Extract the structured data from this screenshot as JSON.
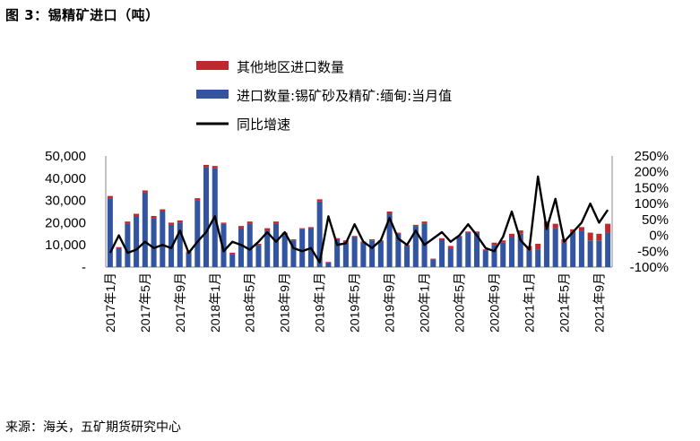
{
  "figure_title": "图 3：锡精矿进口（吨）",
  "source": "来源：海关，五矿期货研究中心",
  "colors": {
    "other_regions": "#C0282D",
    "myanmar": "#3355A1",
    "yoy_line": "#000000"
  },
  "chart_data": {
    "type": "bar",
    "stacked": true,
    "categories": [
      "2017-01",
      "2017-02",
      "2017-03",
      "2017-04",
      "2017-05",
      "2017-06",
      "2017-07",
      "2017-08",
      "2017-09",
      "2017-10",
      "2017-11",
      "2017-12",
      "2018-01",
      "2018-02",
      "2018-03",
      "2018-04",
      "2018-05",
      "2018-06",
      "2018-07",
      "2018-08",
      "2018-09",
      "2018-10",
      "2018-11",
      "2018-12",
      "2019-01",
      "2019-02",
      "2019-03",
      "2019-04",
      "2019-05",
      "2019-06",
      "2019-07",
      "2019-08",
      "2019-09",
      "2019-10",
      "2019-11",
      "2019-12",
      "2020-01",
      "2020-02",
      "2020-03",
      "2020-04",
      "2020-05",
      "2020-06",
      "2020-07",
      "2020-08",
      "2020-09",
      "2020-10",
      "2020-11",
      "2020-12",
      "2021-01",
      "2021-02",
      "2021-03",
      "2021-04",
      "2021-05",
      "2021-06",
      "2021-07",
      "2021-08",
      "2021-09",
      "2021-10"
    ],
    "x_tick_labels": [
      "2017年1月",
      "2017年5月",
      "2017年9月",
      "2018年1月",
      "2018年5月",
      "2018年9月",
      "2019年1月",
      "2019年5月",
      "2019年9月",
      "2020年1月",
      "2020年5月",
      "2020年9月",
      "2021年1月",
      "2021年5月",
      "2021年9月"
    ],
    "x_tick_every": 4,
    "series": [
      {
        "name": "进口数量:锡矿砂及精矿:缅甸:当月值",
        "axis": "left",
        "values": [
          31000,
          8500,
          19500,
          23000,
          33500,
          22000,
          25000,
          19000,
          20000,
          6500,
          30000,
          45000,
          44500,
          19500,
          6000,
          17500,
          19500,
          10000,
          16500,
          19500,
          14500,
          12000,
          17000,
          17500,
          29500,
          2000,
          12500,
          11000,
          13500,
          11000,
          12000,
          11500,
          24000,
          15000,
          9500,
          18500,
          19500,
          3500,
          12500,
          8500,
          13500,
          15500,
          15500,
          7500,
          10000,
          11000,
          13500,
          15000,
          7500,
          8000,
          17500,
          17500,
          11000,
          15500,
          16500,
          12000,
          12000,
          15500
        ]
      },
      {
        "name": "其他地区进口数量",
        "axis": "left",
        "values": [
          1000,
          500,
          1000,
          1000,
          1000,
          1000,
          1000,
          1000,
          1000,
          500,
          1000,
          1000,
          1000,
          500,
          500,
          1000,
          1000,
          500,
          1000,
          1000,
          1000,
          500,
          500,
          500,
          1000,
          300,
          500,
          1000,
          500,
          500,
          500,
          500,
          1000,
          500,
          500,
          500,
          1000,
          300,
          500,
          1000,
          500,
          500,
          500,
          500,
          1000,
          1000,
          1500,
          1500,
          2000,
          2500,
          3000,
          2000,
          1500,
          1500,
          1500,
          3500,
          3000,
          4000
        ]
      },
      {
        "name": "同比增速",
        "axis": "right",
        "type": "line",
        "values": [
          -55,
          0,
          -55,
          -45,
          -20,
          -40,
          -30,
          -40,
          15,
          -55,
          -20,
          10,
          60,
          -50,
          -20,
          -30,
          -45,
          -20,
          10,
          -20,
          10,
          -40,
          -50,
          -40,
          -85,
          60,
          -30,
          -25,
          35,
          -20,
          -40,
          -15,
          55,
          -10,
          -30,
          15,
          -30,
          -10,
          10,
          -20,
          0,
          35,
          0,
          -40,
          -50,
          -5,
          75,
          -15,
          -45,
          185,
          20,
          115,
          -20,
          10,
          40,
          100,
          40,
          80
        ]
      }
    ],
    "y_left": {
      "ticks": [
        "-",
        "10,000",
        "20,000",
        "30,000",
        "40,000",
        "50,000"
      ],
      "range": [
        0,
        50000
      ]
    },
    "y_right": {
      "ticks": [
        "-100%",
        "-50%",
        "0%",
        "50%",
        "100%",
        "150%",
        "200%",
        "250%"
      ],
      "range": [
        -100,
        250
      ]
    },
    "legend": [
      "其他地区进口数量",
      "进口数量:锡矿砂及精矿:缅甸:当月值",
      "同比增速"
    ],
    "legend_position": "top"
  }
}
